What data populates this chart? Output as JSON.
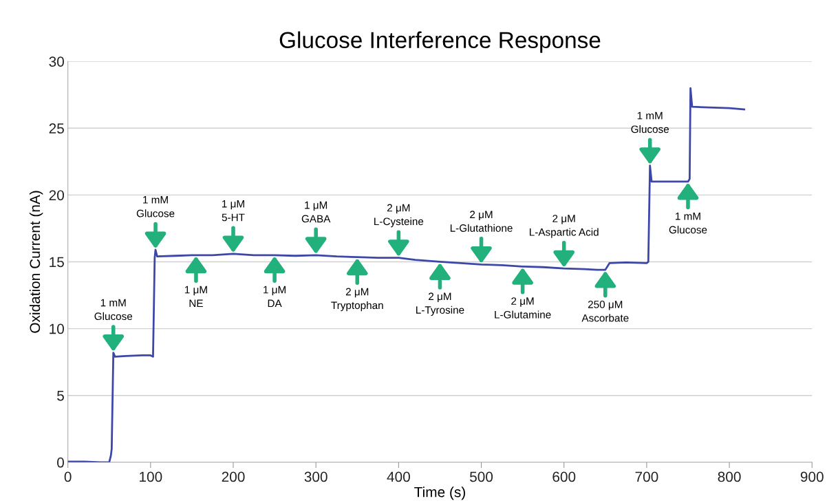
{
  "chart_data": {
    "type": "line",
    "title": "Glucose Interference Response",
    "xlabel": "Time (s)",
    "ylabel": "Oxidation Current (nA)",
    "xlim": [
      0,
      900
    ],
    "xticks": [
      0,
      100,
      200,
      300,
      400,
      500,
      600,
      700,
      800,
      900
    ],
    "ylim": [
      0,
      30
    ],
    "yticks": [
      0,
      5,
      10,
      15,
      20,
      25,
      30
    ],
    "grid": "y",
    "legend": false,
    "marker": "none",
    "line_style": "solid",
    "series": [
      {
        "color": "#3d47a8",
        "x": [
          0,
          20,
          40,
          50,
          52,
          53,
          55,
          57,
          70,
          90,
          100,
          103,
          105,
          106,
          108,
          130,
          150,
          175,
          200,
          225,
          250,
          275,
          300,
          325,
          350,
          375,
          400,
          420,
          450,
          475,
          500,
          525,
          550,
          575,
          600,
          625,
          640,
          650,
          655,
          675,
          700,
          702,
          704,
          706,
          725,
          750,
          752,
          753,
          755,
          775,
          800,
          818
        ],
        "values": [
          0.05,
          0.05,
          0.0,
          0.0,
          0.5,
          1.0,
          8.2,
          7.9,
          7.95,
          8.0,
          8.0,
          7.9,
          15.3,
          15.9,
          15.4,
          15.45,
          15.5,
          15.5,
          15.6,
          15.5,
          15.5,
          15.45,
          15.5,
          15.4,
          15.35,
          15.3,
          15.3,
          15.15,
          15.0,
          14.9,
          14.8,
          14.75,
          14.65,
          14.6,
          14.5,
          14.45,
          14.4,
          14.4,
          14.9,
          14.95,
          14.9,
          15.0,
          22.2,
          21.0,
          21.0,
          21.0,
          21.2,
          28.0,
          26.6,
          26.55,
          26.5,
          26.4
        ]
      }
    ],
    "annotations": [
      {
        "text": "1 mM\nGlucose",
        "x": 55,
        "y": 8.2
      },
      {
        "text": "1 mM\nGlucose",
        "x": 106,
        "y": 15.9
      },
      {
        "text": "1 μM\nNE",
        "x": 155,
        "y": 15.5
      },
      {
        "text": "1 μM\n5-HT",
        "x": 200,
        "y": 15.6
      },
      {
        "text": "1 μM\nDA",
        "x": 250,
        "y": 15.5
      },
      {
        "text": "1 μM\nGABA",
        "x": 300,
        "y": 15.5
      },
      {
        "text": "2 μM\nTryptophan",
        "x": 350,
        "y": 15.35
      },
      {
        "text": "2 μM\nL-Cysteine",
        "x": 400,
        "y": 15.3
      },
      {
        "text": "2 μM\nL-Tyrosine",
        "x": 450,
        "y": 15.0
      },
      {
        "text": "2 μM\nL-Glutathione",
        "x": 500,
        "y": 14.8
      },
      {
        "text": "2 μM\nL-Glutamine",
        "x": 550,
        "y": 14.65
      },
      {
        "text": "2 μM\nL-Aspartic Acid",
        "x": 600,
        "y": 14.5
      },
      {
        "text": "250 μM\nAscorbate",
        "x": 650,
        "y": 14.4
      },
      {
        "text": "1 mM\nGlucose",
        "x": 704,
        "y": 22.2
      },
      {
        "text": "1 mM\nGlucose",
        "x": 750,
        "y": 21.0
      }
    ]
  }
}
